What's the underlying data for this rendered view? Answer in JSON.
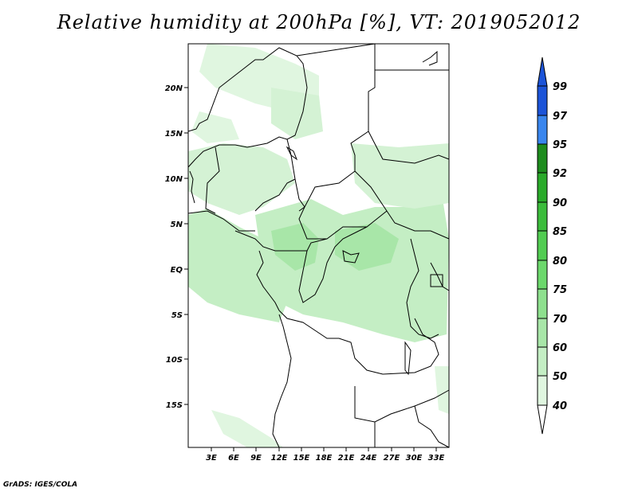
{
  "title": "Relative humidity at 200hPa [%], VT: 2019052012",
  "credit": "GrADS: IGES/COLA",
  "lat_labels": [
    "20N",
    "15N",
    "10N",
    "5N",
    "EQ",
    "5S",
    "10S",
    "15S"
  ],
  "lon_labels": [
    "3E",
    "6E",
    "9E",
    "12E",
    "15E",
    "18E",
    "21E",
    "24E",
    "27E",
    "30E",
    "33E"
  ],
  "colorbar": {
    "levels": [
      "99",
      "97",
      "95",
      "92",
      "90",
      "85",
      "80",
      "75",
      "70",
      "60",
      "50",
      "40"
    ],
    "colors": [
      "#1c54d8",
      "#3a86ee",
      "#1e8c1e",
      "#2aaa2a",
      "#3cbc3c",
      "#52cc52",
      "#6cd86c",
      "#8ee08e",
      "#a8e6a8",
      "#c4eec4",
      "#e0f6e0"
    ]
  }
}
